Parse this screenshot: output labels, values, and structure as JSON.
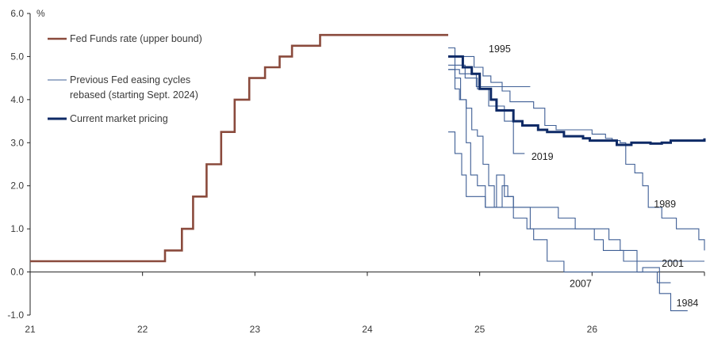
{
  "colors": {
    "fed_funds": "#8a4a3c",
    "previous": "#3f5f95",
    "current": "#0e2a66",
    "axis": "#222222",
    "text": "#3a3a3a"
  },
  "chart_data": {
    "type": "line",
    "unit_label": "%",
    "xlim": [
      21,
      27
    ],
    "ylim": [
      -1.0,
      6.0
    ],
    "x_ticks": [
      {
        "value": 21,
        "label": "21"
      },
      {
        "value": 22,
        "label": "22"
      },
      {
        "value": 23,
        "label": "23"
      },
      {
        "value": 24,
        "label": "24"
      },
      {
        "value": 25,
        "label": "25"
      },
      {
        "value": 26,
        "label": "26"
      }
    ],
    "y_ticks": [
      {
        "value": 6,
        "label": "6.0"
      },
      {
        "value": 5,
        "label": "5.0"
      },
      {
        "value": 4,
        "label": "4.0"
      },
      {
        "value": 3,
        "label": "3.0"
      },
      {
        "value": 2,
        "label": "2.0"
      },
      {
        "value": 1,
        "label": "1.0"
      },
      {
        "value": 0,
        "label": "0.0"
      },
      {
        "value": -1,
        "label": "-1.0"
      }
    ],
    "legend": [
      {
        "label": "Fed Funds rate (upper bound)",
        "style": "fed"
      },
      {
        "label": "Previous Fed easing cycles",
        "label2": "rebased (starting Sept. 2024)",
        "style": "previous"
      },
      {
        "label": "Current market pricing",
        "style": "current"
      }
    ],
    "series": [
      {
        "name": "Fed Funds rate (upper bound)",
        "style": "fed",
        "step": true,
        "points": [
          [
            21.0,
            0.25
          ],
          [
            22.2,
            0.5
          ],
          [
            22.35,
            1.0
          ],
          [
            22.45,
            1.75
          ],
          [
            22.57,
            2.5
          ],
          [
            22.7,
            3.25
          ],
          [
            22.82,
            4.0
          ],
          [
            22.95,
            4.5
          ],
          [
            23.09,
            4.75
          ],
          [
            23.22,
            5.0
          ],
          [
            23.33,
            5.25
          ],
          [
            23.58,
            5.5
          ],
          [
            24.72,
            5.5
          ]
        ]
      },
      {
        "name": "Current market pricing",
        "style": "current",
        "step": true,
        "points": [
          [
            24.72,
            5.0
          ],
          [
            24.85,
            4.75
          ],
          [
            24.93,
            4.6
          ],
          [
            25.0,
            4.25
          ],
          [
            25.1,
            4.0
          ],
          [
            25.15,
            3.75
          ],
          [
            25.3,
            3.5
          ],
          [
            25.38,
            3.4
          ],
          [
            25.52,
            3.3
          ],
          [
            25.6,
            3.25
          ],
          [
            25.75,
            3.15
          ],
          [
            25.92,
            3.1
          ],
          [
            25.98,
            3.05
          ],
          [
            26.1,
            3.05
          ],
          [
            26.22,
            2.95
          ],
          [
            26.35,
            3.0
          ],
          [
            26.52,
            2.98
          ],
          [
            26.62,
            3.0
          ],
          [
            26.7,
            3.05
          ],
          [
            27.0,
            3.1
          ]
        ]
      },
      {
        "name": "1995",
        "style": "previous",
        "label": "1995",
        "step": true,
        "points": [
          [
            24.72,
            4.7
          ],
          [
            24.82,
            4.6
          ],
          [
            24.97,
            4.3
          ],
          [
            25.1,
            4.3
          ],
          [
            25.22,
            4.3
          ],
          [
            25.38,
            4.3
          ],
          [
            25.45,
            4.3
          ]
        ]
      },
      {
        "name": "2019",
        "style": "previous",
        "label": "2019",
        "step": true,
        "points": [
          [
            24.72,
            4.8
          ],
          [
            24.87,
            4.5
          ],
          [
            24.98,
            4.25
          ],
          [
            25.08,
            3.85
          ],
          [
            25.22,
            3.5
          ],
          [
            25.3,
            2.75
          ],
          [
            25.4,
            2.75
          ]
        ]
      },
      {
        "name": "1989",
        "style": "previous",
        "label": "1989",
        "step": true,
        "points": [
          [
            24.72,
            5.0
          ],
          [
            24.95,
            4.75
          ],
          [
            25.03,
            4.55
          ],
          [
            25.1,
            4.4
          ],
          [
            25.2,
            4.2
          ],
          [
            25.27,
            3.95
          ],
          [
            25.48,
            3.8
          ],
          [
            25.58,
            3.4
          ],
          [
            25.68,
            3.3
          ],
          [
            26.0,
            3.2
          ],
          [
            26.12,
            3.1
          ],
          [
            26.18,
            3.05
          ],
          [
            26.25,
            3.0
          ],
          [
            26.3,
            2.5
          ],
          [
            26.38,
            2.3
          ],
          [
            26.45,
            2.0
          ],
          [
            26.5,
            1.5
          ],
          [
            26.62,
            1.25
          ],
          [
            26.75,
            1.0
          ],
          [
            26.95,
            0.75
          ],
          [
            27.0,
            0.5
          ]
        ]
      },
      {
        "name": "2001",
        "style": "previous",
        "label": "2001",
        "step": true,
        "points": [
          [
            24.72,
            5.2
          ],
          [
            24.78,
            4.25
          ],
          [
            24.82,
            4.0
          ],
          [
            24.88,
            3.8
          ],
          [
            24.93,
            3.3
          ],
          [
            24.98,
            3.15
          ],
          [
            25.03,
            2.5
          ],
          [
            25.08,
            2.0
          ],
          [
            25.13,
            1.5
          ],
          [
            25.22,
            1.5
          ],
          [
            25.35,
            1.5
          ],
          [
            25.45,
            1.5
          ],
          [
            25.6,
            1.5
          ],
          [
            25.7,
            1.25
          ],
          [
            25.85,
            1.0
          ],
          [
            26.0,
            1.0
          ],
          [
            26.15,
            0.75
          ],
          [
            26.25,
            0.5
          ],
          [
            26.4,
            0.25
          ],
          [
            26.6,
            0.25
          ],
          [
            26.72,
            0.25
          ],
          [
            26.8,
            0.25
          ],
          [
            27.0,
            0.25
          ]
        ]
      },
      {
        "name": "2007",
        "style": "previous",
        "label": "2007",
        "step": true,
        "points": [
          [
            24.72,
            4.7
          ],
          [
            24.78,
            4.5
          ],
          [
            24.83,
            4.0
          ],
          [
            24.88,
            3.0
          ],
          [
            24.92,
            2.25
          ],
          [
            24.98,
            2.0
          ],
          [
            25.05,
            1.5
          ],
          [
            25.17,
            1.5
          ],
          [
            25.2,
            2.0
          ],
          [
            25.25,
            1.75
          ],
          [
            25.3,
            1.5
          ],
          [
            25.45,
            1.0
          ],
          [
            25.6,
            1.0
          ],
          [
            25.75,
            1.0
          ],
          [
            25.93,
            1.0
          ],
          [
            26.02,
            0.75
          ],
          [
            26.1,
            0.5
          ],
          [
            26.28,
            0.25
          ],
          [
            26.4,
            0.0
          ],
          [
            26.52,
            0.0
          ],
          [
            26.58,
            -0.25
          ],
          [
            26.7,
            -0.25
          ]
        ]
      },
      {
        "name": "1984",
        "style": "previous",
        "label": "1984",
        "step": true,
        "points": [
          [
            24.72,
            3.25
          ],
          [
            24.78,
            2.75
          ],
          [
            24.84,
            2.25
          ],
          [
            24.88,
            1.75
          ],
          [
            25.0,
            1.75
          ],
          [
            25.05,
            1.5
          ],
          [
            25.15,
            2.25
          ],
          [
            25.22,
            1.75
          ],
          [
            25.3,
            1.25
          ],
          [
            25.42,
            1.0
          ],
          [
            25.48,
            0.75
          ],
          [
            25.6,
            0.25
          ],
          [
            25.7,
            0.25
          ],
          [
            25.75,
            0.0
          ],
          [
            25.85,
            0.0
          ],
          [
            26.0,
            0.0
          ],
          [
            26.25,
            0.0
          ],
          [
            26.37,
            0.0
          ],
          [
            26.45,
            0.1
          ],
          [
            26.55,
            0.1
          ],
          [
            26.6,
            -0.5
          ],
          [
            26.7,
            -0.9
          ],
          [
            26.85,
            -0.9
          ]
        ]
      }
    ],
    "annotations": [
      {
        "text": "1995",
        "x": 25.08,
        "y": 5.1
      },
      {
        "text": "2019",
        "x": 25.46,
        "y": 2.6
      },
      {
        "text": "1989",
        "x": 26.55,
        "y": 1.5
      },
      {
        "text": "2001",
        "x": 26.62,
        "y": 0.12
      },
      {
        "text": "2007",
        "x": 25.8,
        "y": -0.35
      },
      {
        "text": "1984",
        "x": 26.75,
        "y": -0.8
      }
    ]
  }
}
